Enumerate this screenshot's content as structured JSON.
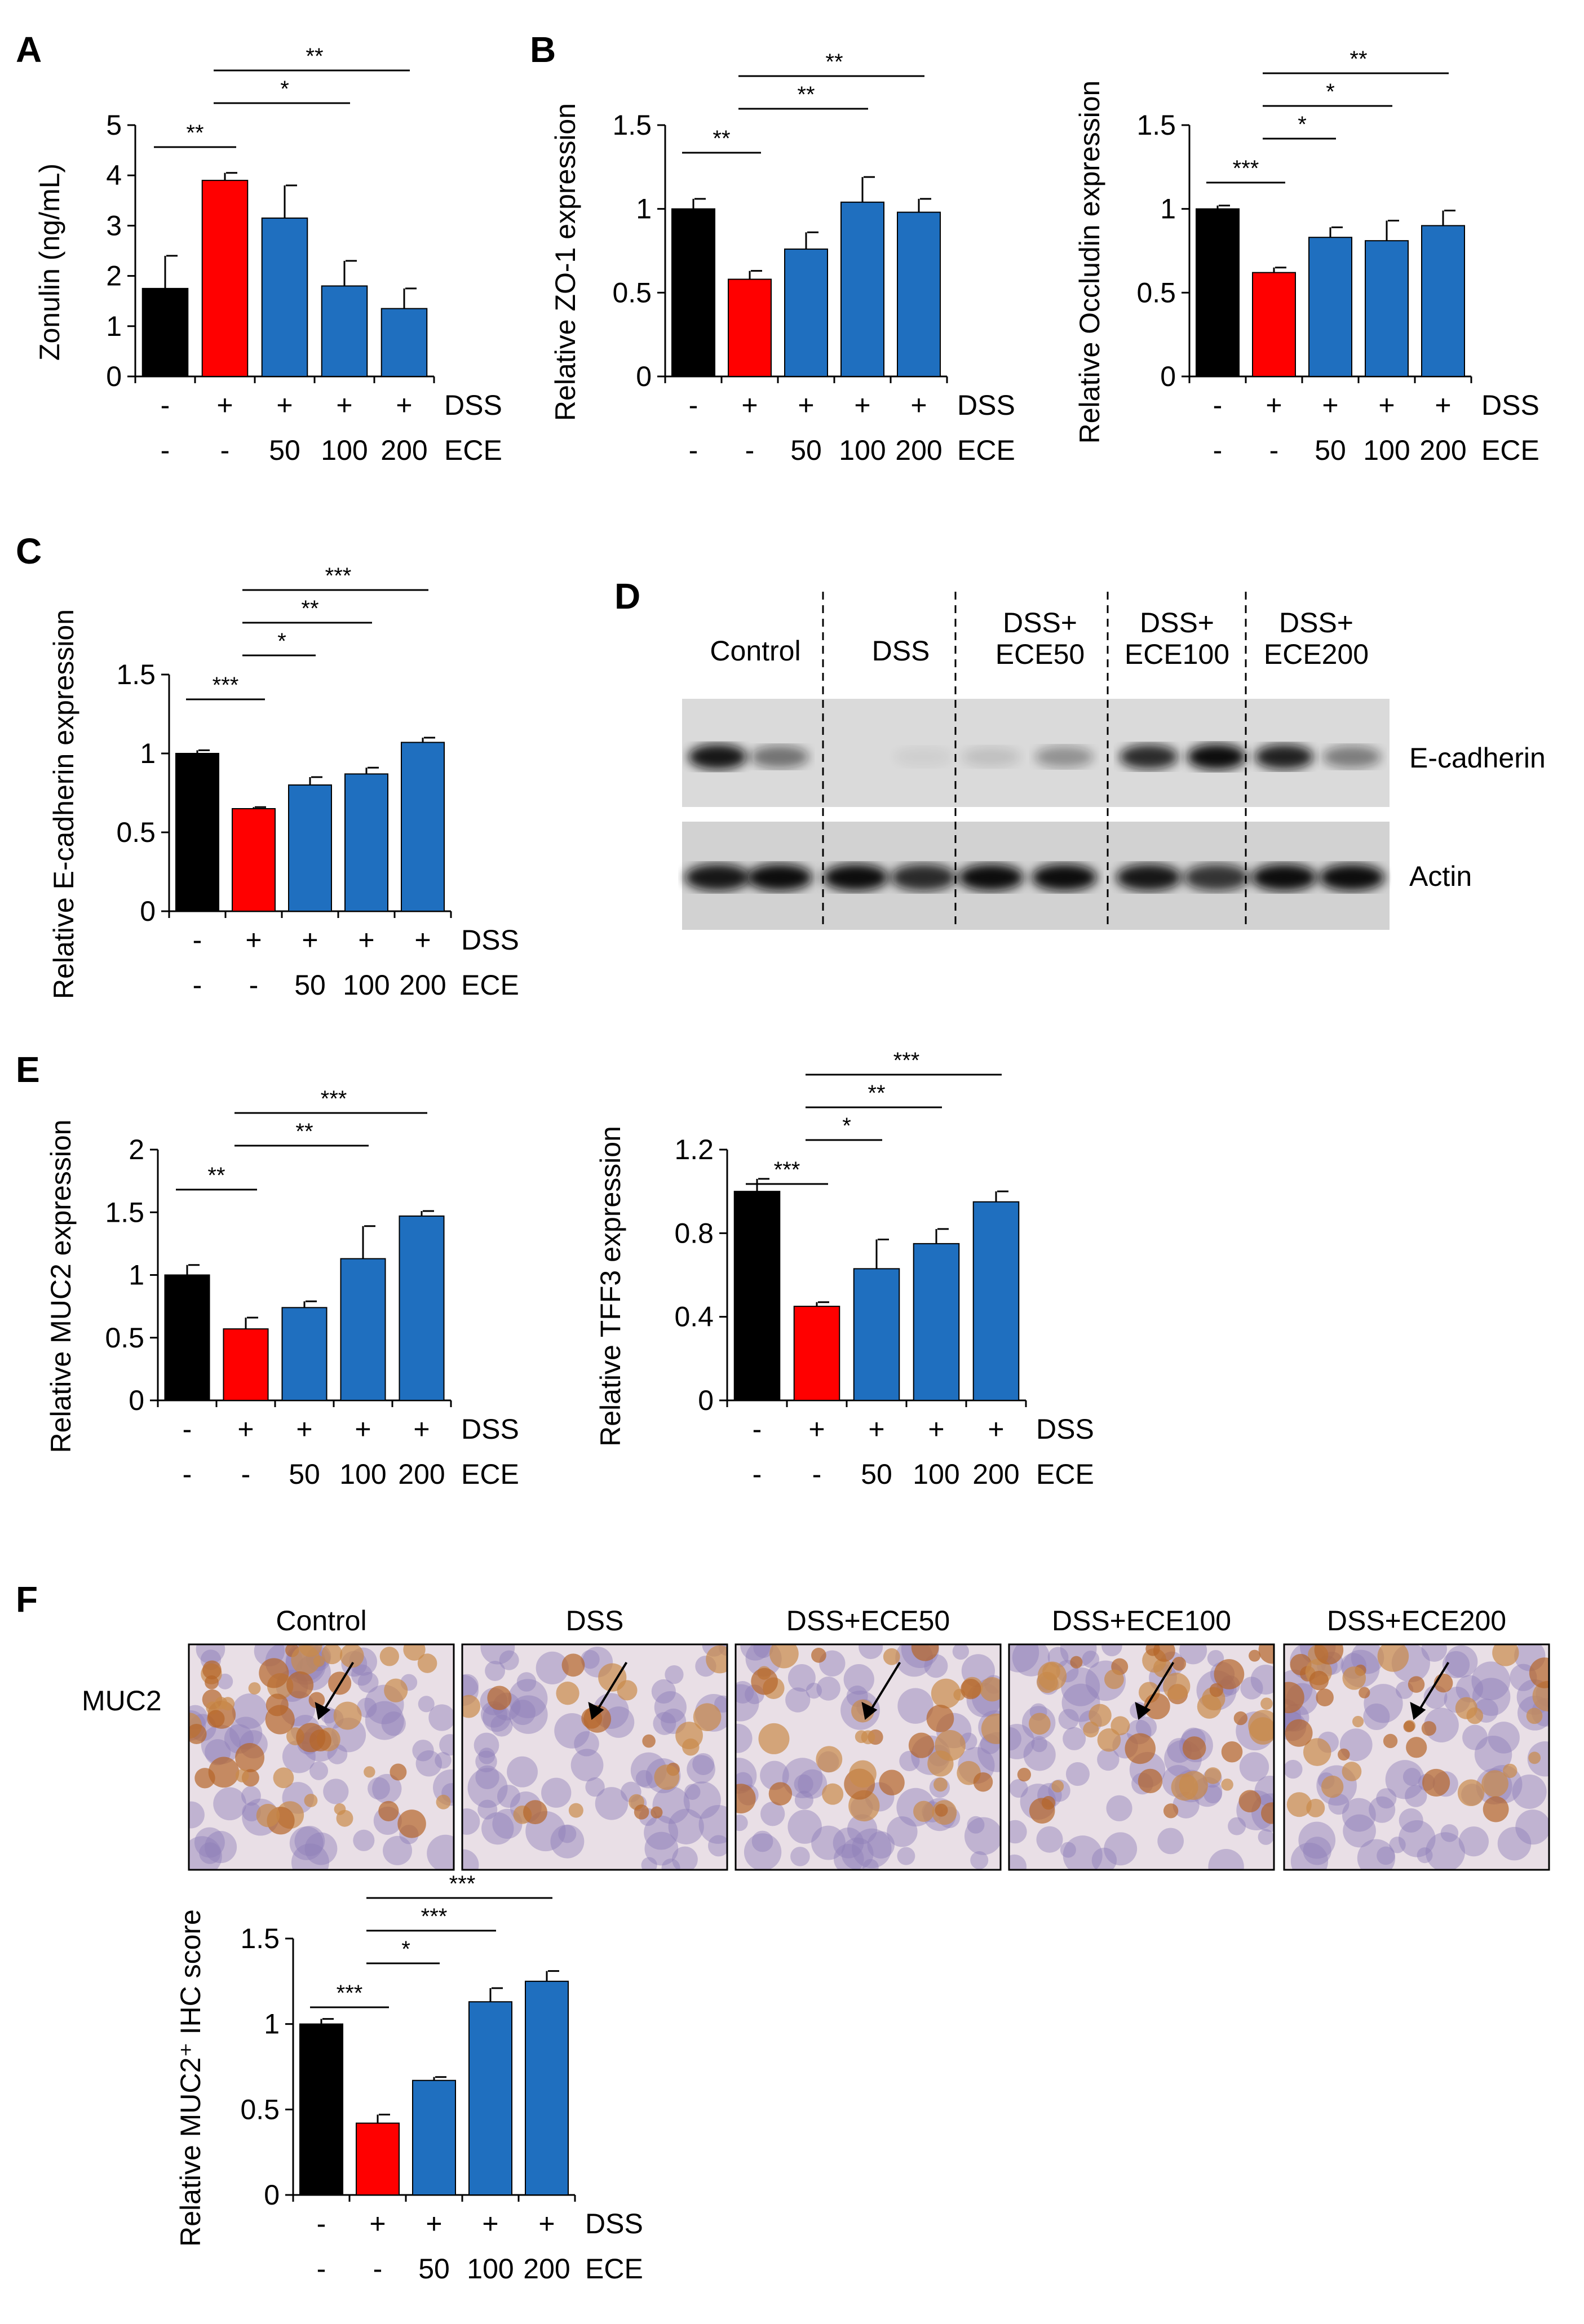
{
  "colors": {
    "control": "#000000",
    "dss": "#ff0000",
    "ece": "#1f6fbf",
    "blot_bg": "#d9d9d9",
    "band": "#1a1a1a"
  },
  "panel_letters": [
    "A",
    "B",
    "C",
    "D",
    "E",
    "F"
  ],
  "row_labels": {
    "dss": "DSS",
    "ece": "ECE",
    "dss_marks": [
      "-",
      "+",
      "+",
      "+",
      "+"
    ],
    "ece_marks": [
      "-",
      "-",
      "50",
      "100",
      "200"
    ]
  },
  "chart_data": [
    {
      "id": "A",
      "type": "bar",
      "ylabel": "Zonulin (ng/mL)",
      "ylim": [
        0,
        5
      ],
      "yticks": [
        "0",
        "1",
        "2",
        "3",
        "4",
        "5"
      ],
      "values": [
        1.75,
        3.9,
        3.15,
        1.8,
        1.35
      ],
      "errors": [
        0.65,
        0.15,
        0.65,
        0.5,
        0.4
      ],
      "sig": [
        {
          "from": 0,
          "to": 1,
          "label": "**"
        },
        {
          "from": 1,
          "to": 3,
          "label": "*"
        },
        {
          "from": 1,
          "to": 4,
          "label": "**"
        }
      ]
    },
    {
      "id": "B1",
      "type": "bar",
      "ylabel": "Relative ZO-1  expression",
      "ylim": [
        0,
        1.5
      ],
      "yticks": [
        "0",
        "0.5",
        "1",
        "1.5"
      ],
      "values": [
        1.0,
        0.58,
        0.76,
        1.04,
        0.98
      ],
      "errors": [
        0.06,
        0.05,
        0.1,
        0.15,
        0.08
      ],
      "sig": [
        {
          "from": 0,
          "to": 1,
          "label": "**"
        },
        {
          "from": 1,
          "to": 3,
          "label": "**"
        },
        {
          "from": 1,
          "to": 4,
          "label": "**"
        }
      ]
    },
    {
      "id": "B2",
      "type": "bar",
      "ylabel": "Relative Occludin  expression",
      "ylim": [
        0,
        1.5
      ],
      "yticks": [
        "0",
        "0.5",
        "1",
        "1.5"
      ],
      "values": [
        1.0,
        0.62,
        0.83,
        0.81,
        0.9
      ],
      "errors": [
        0.02,
        0.03,
        0.06,
        0.12,
        0.09
      ],
      "sig": [
        {
          "from": 0,
          "to": 1,
          "label": "***"
        },
        {
          "from": 1,
          "to": 2,
          "label": "*"
        },
        {
          "from": 1,
          "to": 3,
          "label": "*"
        },
        {
          "from": 1,
          "to": 4,
          "label": "**"
        }
      ]
    },
    {
      "id": "C",
      "type": "bar",
      "ylabel": "Relative E-cadherin  expression",
      "ylim": [
        0,
        1.5
      ],
      "yticks": [
        "0",
        "0.5",
        "1",
        "1.5"
      ],
      "values": [
        1.0,
        0.65,
        0.8,
        0.87,
        1.07
      ],
      "errors": [
        0.02,
        0.01,
        0.05,
        0.04,
        0.03
      ],
      "sig": [
        {
          "from": 0,
          "to": 1,
          "label": "***"
        },
        {
          "from": 1,
          "to": 2,
          "label": "*"
        },
        {
          "from": 1,
          "to": 3,
          "label": "**"
        },
        {
          "from": 1,
          "to": 4,
          "label": "***"
        }
      ]
    },
    {
      "id": "E1",
      "type": "bar",
      "ylabel": "Relative MUC2  expression",
      "ylim": [
        0,
        2
      ],
      "yticks": [
        "0",
        "0.5",
        "1",
        "1.5",
        "2"
      ],
      "values": [
        1.0,
        0.57,
        0.74,
        1.13,
        1.47
      ],
      "errors": [
        0.08,
        0.09,
        0.05,
        0.26,
        0.04
      ],
      "sig": [
        {
          "from": 0,
          "to": 1,
          "label": "**"
        },
        {
          "from": 1,
          "to": 3,
          "label": "**"
        },
        {
          "from": 1,
          "to": 4,
          "label": "***"
        }
      ]
    },
    {
      "id": "E2",
      "type": "bar",
      "ylabel": "Relative TFF3  expression",
      "ylim": [
        0,
        1.2
      ],
      "yticks": [
        "0",
        "0.4",
        "0.8",
        "1.2"
      ],
      "values": [
        1.0,
        0.45,
        0.63,
        0.75,
        0.95
      ],
      "errors": [
        0.06,
        0.02,
        0.14,
        0.07,
        0.05
      ],
      "sig": [
        {
          "from": 0,
          "to": 1,
          "label": "***"
        },
        {
          "from": 1,
          "to": 2,
          "label": "*"
        },
        {
          "from": 1,
          "to": 3,
          "label": "**"
        },
        {
          "from": 1,
          "to": 4,
          "label": "***"
        }
      ]
    },
    {
      "id": "F",
      "type": "bar",
      "ylabel": "Relative MUC2⁺ IHC score",
      "ylim": [
        0,
        1.5
      ],
      "yticks": [
        "0",
        "0.5",
        "1",
        "1.5"
      ],
      "values": [
        1.0,
        0.42,
        0.67,
        1.13,
        1.25
      ],
      "errors": [
        0.03,
        0.05,
        0.02,
        0.08,
        0.06
      ],
      "sig": [
        {
          "from": 0,
          "to": 1,
          "label": "***"
        },
        {
          "from": 1,
          "to": 2,
          "label": "*"
        },
        {
          "from": 1,
          "to": 3,
          "label": "***"
        },
        {
          "from": 1,
          "to": 4,
          "label": "***"
        }
      ]
    }
  ],
  "western_blot": {
    "groups": [
      "Control",
      "DSS",
      "DSS+\nECE50",
      "DSS+\nECE100",
      "DSS+\nECE200"
    ],
    "proteins": [
      "E-cadherin",
      "Actin"
    ],
    "ecad_intensity": [
      0.95,
      0.5,
      0.0,
      0.05,
      0.12,
      0.35,
      0.85,
      1.0,
      0.9,
      0.45
    ],
    "actin_intensity": [
      0.95,
      1.0,
      1.0,
      0.85,
      1.0,
      1.0,
      0.95,
      0.8,
      1.0,
      1.0
    ]
  },
  "ihc": {
    "titles": [
      "Control",
      "DSS",
      "DSS+ECE50",
      "DSS+ECE100",
      "DSS+ECE200"
    ],
    "row_label": "MUC2",
    "stain_level": [
      0.85,
      0.35,
      0.6,
      0.75,
      0.65
    ]
  }
}
